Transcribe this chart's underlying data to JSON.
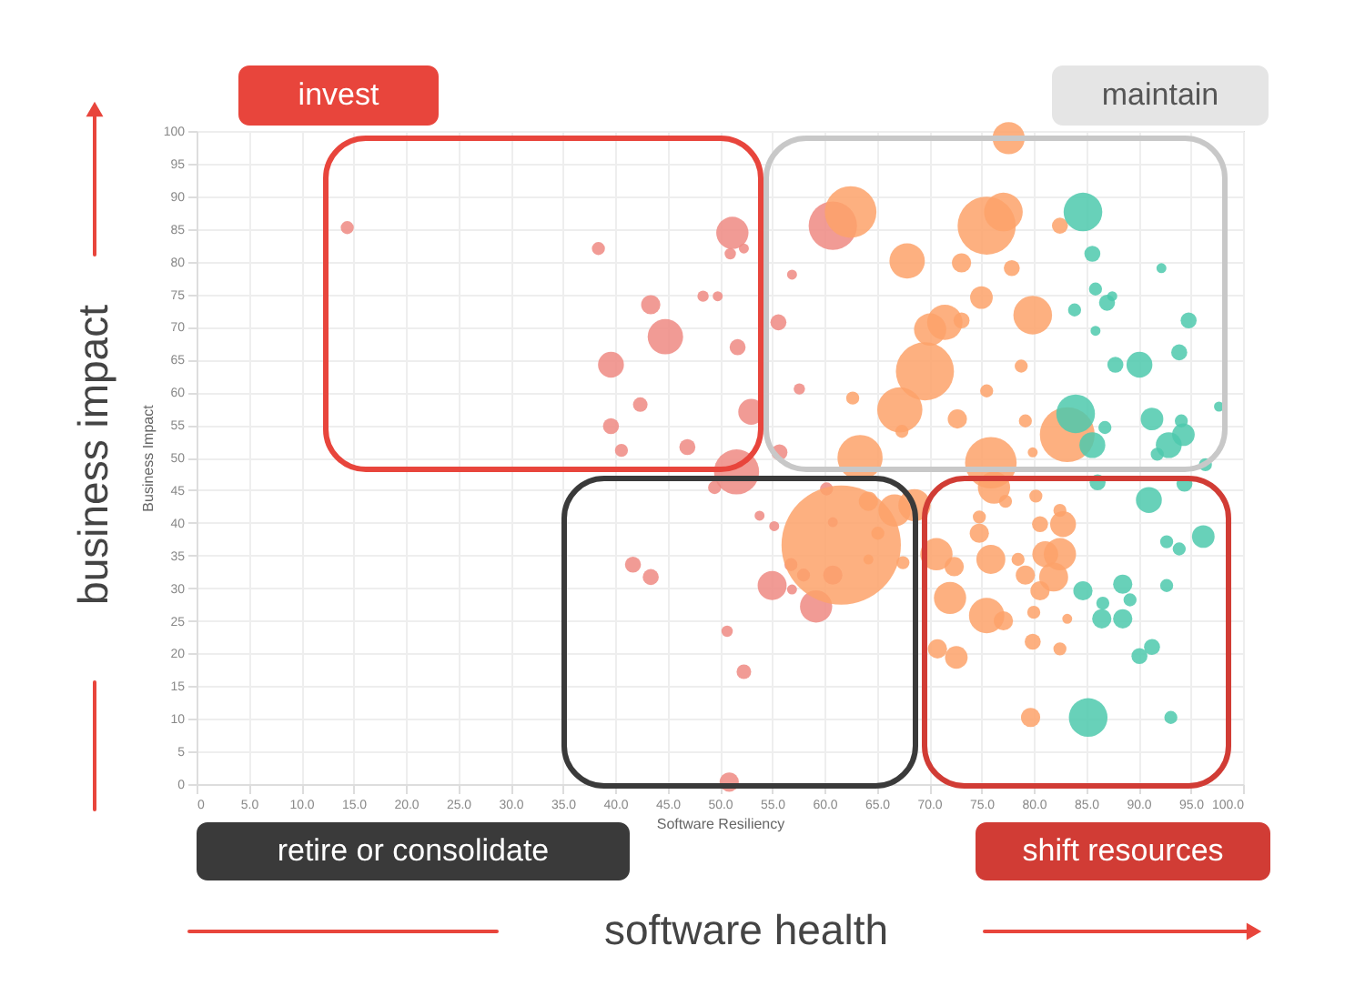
{
  "chart_data": {
    "type": "bubble",
    "xlabel": "Software Resiliency",
    "ylabel": "Business Impact",
    "annotations": [
      "invest",
      "maintain",
      "retire or consolidate",
      "shift resources",
      "business impact",
      "software health"
    ],
    "xlim": [
      0,
      100
    ],
    "ylim": [
      0,
      100
    ],
    "xticks": [
      {
        "value": 0,
        "label": "0"
      },
      {
        "value": 5,
        "label": "5.0"
      },
      {
        "value": 10,
        "label": "10.0"
      },
      {
        "value": 15,
        "label": "15.0"
      },
      {
        "value": 20,
        "label": "20.0"
      },
      {
        "value": 25,
        "label": "25.0"
      },
      {
        "value": 30,
        "label": "30.0"
      },
      {
        "value": 35,
        "label": "35.0"
      },
      {
        "value": 40,
        "label": "40.0"
      },
      {
        "value": 45,
        "label": "45.0"
      },
      {
        "value": 50,
        "label": "50.0"
      },
      {
        "value": 55,
        "label": "55.0"
      },
      {
        "value": 60,
        "label": "60.0"
      },
      {
        "value": 65,
        "label": "65.0"
      },
      {
        "value": 70,
        "label": "70.0"
      },
      {
        "value": 75,
        "label": "75.0"
      },
      {
        "value": 80,
        "label": "80.0"
      },
      {
        "value": 85,
        "label": "85.0"
      },
      {
        "value": 90,
        "label": "90.0"
      },
      {
        "value": 95,
        "label": "95.0"
      },
      {
        "value": 100,
        "label": "100.0"
      }
    ],
    "yticks": [
      0,
      5,
      10,
      15,
      20,
      25,
      30,
      35,
      40,
      45,
      50,
      55,
      60,
      65,
      70,
      75,
      80,
      85,
      90,
      95,
      100
    ],
    "grid": true,
    "legend": false,
    "series": [
      {
        "color": "#ef8a82",
        "x": [
          14.4,
          38.4,
          51.2,
          51.0,
          52.3,
          43.4,
          48.4,
          49.8,
          44.8,
          51.7,
          39.6,
          42.4,
          39.6,
          40.6,
          46.9,
          53.0,
          51.6,
          49.5,
          41.7,
          43.4,
          50.7,
          52.3,
          50.9,
          53.8,
          60.8,
          56.9,
          55.6,
          57.6,
          55.7,
          55.2,
          60.2,
          60.8,
          56.8,
          58.0,
          60.8,
          55.0,
          56.9,
          59.2
        ],
        "values": [
          85.2,
          82.0,
          84.4,
          81.2,
          82.0,
          73.4,
          74.7,
          74.7,
          68.5,
          66.9,
          64.2,
          58.1,
          54.8,
          51.1,
          51.6,
          57.0,
          47.8,
          45.4,
          33.6,
          31.7,
          23.4,
          17.2,
          0.3,
          41.1,
          85.5,
          78.0,
          70.7,
          60.5,
          50.8,
          39.5,
          45.2,
          40.1,
          33.6,
          32.0,
          32.0,
          30.4,
          29.8,
          27.2
        ],
        "sizes": [
          0.012,
          0.012,
          0.073,
          0.009,
          0.007,
          0.026,
          0.009,
          0.007,
          0.088,
          0.018,
          0.047,
          0.015,
          0.018,
          0.012,
          0.018,
          0.047,
          0.143,
          0.012,
          0.018,
          0.018,
          0.009,
          0.015,
          0.026,
          0.007,
          0.164,
          0.007,
          0.018,
          0.009,
          0.018,
          0.007,
          0.012,
          0.007,
          0.012,
          0.012,
          0.026,
          0.059,
          0.007,
          0.073
        ]
      },
      {
        "color": "#fda26a",
        "x": [
          77.6,
          62.5,
          75.5,
          77.1,
          82.5,
          67.9,
          73.1,
          77.9,
          75.0,
          79.9,
          71.5,
          70.1,
          73.1,
          69.6,
          78.8,
          75.5,
          62.7,
          67.2,
          72.7,
          79.2,
          67.4,
          83.2,
          63.4,
          75.9,
          79.9,
          61.6,
          64.2,
          66.7,
          68.6,
          65.1,
          64.2,
          67.5,
          70.7,
          72.4,
          72.0,
          75.5,
          77.1,
          75.9,
          74.8,
          74.8,
          80.2,
          80.6,
          82.8,
          82.5,
          78.5,
          79.2,
          81.1,
          82.5,
          81.9,
          80.6,
          80.0,
          83.2,
          79.9,
          82.5,
          70.8,
          72.6,
          79.7,
          76.2,
          77.3
        ],
        "values": [
          98.9,
          87.6,
          85.5,
          87.6,
          85.5,
          80.1,
          79.8,
          79.0,
          74.5,
          71.8,
          70.7,
          69.6,
          71.0,
          63.2,
          64.0,
          60.2,
          59.1,
          57.3,
          55.9,
          55.6,
          54.0,
          53.5,
          50.0,
          49.2,
          50.8,
          36.6,
          43.3,
          41.9,
          42.7,
          38.4,
          34.4,
          33.9,
          35.2,
          33.3,
          28.5,
          25.8,
          25.0,
          34.4,
          38.4,
          40.9,
          44.1,
          39.8,
          39.8,
          41.9,
          34.4,
          32.0,
          35.2,
          35.2,
          31.7,
          29.6,
          26.3,
          25.3,
          21.8,
          20.7,
          20.7,
          19.4,
          10.2,
          45.4,
          43.3
        ],
        "sizes": [
          0.073,
          0.187,
          0.237,
          0.105,
          0.018,
          0.088,
          0.026,
          0.018,
          0.036,
          0.105,
          0.088,
          0.073,
          0.018,
          0.237,
          0.012,
          0.012,
          0.012,
          0.143,
          0.026,
          0.012,
          0.012,
          0.211,
          0.143,
          0.187,
          0.007,
          1,
          0.026,
          0.073,
          0.073,
          0.012,
          0.007,
          0.012,
          0.073,
          0.026,
          0.073,
          0.088,
          0.026,
          0.059,
          0.026,
          0.012,
          0.012,
          0.018,
          0.047,
          0.012,
          0.012,
          0.026,
          0.047,
          0.073,
          0.059,
          0.026,
          0.012,
          0.007,
          0.018,
          0.012,
          0.026,
          0.036,
          0.026,
          0.073,
          0.012
        ]
      },
      {
        "color": "#4ec9ad",
        "x": [
          84.7,
          85.6,
          92.2,
          85.9,
          87.0,
          87.5,
          83.9,
          94.8,
          85.9,
          93.9,
          87.8,
          90.1,
          97.7,
          84.0,
          86.8,
          91.3,
          94.1,
          94.3,
          85.6,
          92.9,
          91.8,
          96.4,
          86.1,
          91.0,
          94.4,
          96.2,
          92.7,
          93.9,
          84.7,
          88.5,
          89.2,
          86.6,
          86.5,
          88.5,
          92.7,
          91.3,
          90.1,
          85.2,
          93.1
        ],
        "values": [
          87.6,
          81.2,
          79.0,
          75.8,
          73.7,
          74.7,
          72.6,
          71.0,
          69.4,
          66.1,
          64.2,
          64.2,
          57.8,
          56.7,
          54.6,
          55.9,
          55.6,
          53.5,
          51.9,
          51.9,
          50.5,
          48.9,
          46.2,
          43.5,
          46.0,
          37.9,
          37.1,
          36.0,
          29.6,
          30.6,
          28.2,
          27.7,
          25.3,
          25.3,
          30.4,
          21.0,
          19.6,
          10.2,
          10.2
        ],
        "sizes": [
          0.105,
          0.018,
          0.007,
          0.012,
          0.018,
          0.007,
          0.012,
          0.018,
          0.007,
          0.018,
          0.018,
          0.047,
          0.007,
          0.105,
          0.012,
          0.036,
          0.012,
          0.036,
          0.047,
          0.047,
          0.012,
          0.012,
          0.018,
          0.047,
          0.018,
          0.036,
          0.012,
          0.012,
          0.026,
          0.026,
          0.012,
          0.012,
          0.026,
          0.026,
          0.012,
          0.018,
          0.018,
          0.105,
          0.012
        ]
      }
    ]
  }
}
